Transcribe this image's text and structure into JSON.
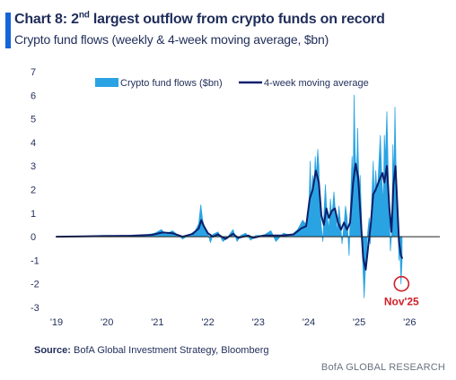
{
  "header": {
    "title_prefix": "Chart 8: 2",
    "title_sup": "nd",
    "title_rest": " largest outflow from crypto funds on record",
    "subtitle": "Crypto fund flows (weekly & 4-week moving average, $bn)"
  },
  "footer": {
    "source_label": "Source:",
    "source_text": " BofA Global Investment Strategy, Bloomberg",
    "brand": "BofA GLOBAL RESEARCH"
  },
  "chart_data": {
    "type": "area",
    "title": "Chart 8: 2nd largest outflow from crypto funds on record",
    "subtitle": "Crypto fund flows (weekly & 4-week moving average, $bn)",
    "ylim": [
      -3,
      7
    ],
    "yticks": [
      -3,
      -2,
      -1,
      0,
      1,
      2,
      3,
      4,
      5,
      6,
      7
    ],
    "xlim": [
      2019,
      2026.6
    ],
    "xticks": [
      {
        "x": 2019,
        "label": "'19"
      },
      {
        "x": 2020,
        "label": "'20"
      },
      {
        "x": 2021,
        "label": "'21"
      },
      {
        "x": 2022,
        "label": "'22"
      },
      {
        "x": 2023,
        "label": "'23"
      },
      {
        "x": 2024,
        "label": "'24"
      },
      {
        "x": 2025,
        "label": "'25"
      },
      {
        "x": 2026,
        "label": "'26"
      }
    ],
    "legend_position": "top-center",
    "colors": {
      "weekly": "#2aa3e3",
      "ma": "#0b1f6b",
      "annotation": "#d0202a",
      "axis": "#222222",
      "text": "#1f2d5a"
    },
    "series": [
      {
        "name": "Crypto fund flows ($bn)",
        "kind": "area",
        "points": [
          [
            2019.0,
            0.0
          ],
          [
            2019.5,
            0.02
          ],
          [
            2019.9,
            0.05
          ],
          [
            2020.2,
            0.02
          ],
          [
            2020.5,
            0.06
          ],
          [
            2020.8,
            0.08
          ],
          [
            2020.95,
            0.15
          ],
          [
            2021.08,
            0.3
          ],
          [
            2021.16,
            0.1
          ],
          [
            2021.3,
            0.25
          ],
          [
            2021.5,
            -0.1
          ],
          [
            2021.65,
            0.1
          ],
          [
            2021.75,
            0.25
          ],
          [
            2021.82,
            0.55
          ],
          [
            2021.86,
            1.35
          ],
          [
            2021.89,
            0.8
          ],
          [
            2021.93,
            0.35
          ],
          [
            2022.0,
            0.15
          ],
          [
            2022.05,
            -0.25
          ],
          [
            2022.1,
            0.1
          ],
          [
            2022.2,
            0.2
          ],
          [
            2022.3,
            -0.2
          ],
          [
            2022.4,
            0.0
          ],
          [
            2022.5,
            0.3
          ],
          [
            2022.58,
            -0.2
          ],
          [
            2022.65,
            0.05
          ],
          [
            2022.75,
            0.15
          ],
          [
            2022.85,
            -0.15
          ],
          [
            2022.95,
            0.05
          ],
          [
            2023.1,
            0.05
          ],
          [
            2023.25,
            0.25
          ],
          [
            2023.35,
            -0.2
          ],
          [
            2023.5,
            0.15
          ],
          [
            2023.65,
            0.05
          ],
          [
            2023.78,
            0.3
          ],
          [
            2023.88,
            0.7
          ],
          [
            2023.95,
            0.5
          ],
          [
            2024.0,
            1.0
          ],
          [
            2024.03,
            3.2
          ],
          [
            2024.05,
            1.4
          ],
          [
            2024.08,
            2.6
          ],
          [
            2024.1,
            1.6
          ],
          [
            2024.13,
            3.4
          ],
          [
            2024.15,
            2.5
          ],
          [
            2024.18,
            3.7
          ],
          [
            2024.2,
            3.0
          ],
          [
            2024.22,
            1.2
          ],
          [
            2024.25,
            0.4
          ],
          [
            2024.28,
            -0.2
          ],
          [
            2024.3,
            0.9
          ],
          [
            2024.33,
            2.2
          ],
          [
            2024.36,
            1.0
          ],
          [
            2024.4,
            0.3
          ],
          [
            2024.43,
            1.6
          ],
          [
            2024.46,
            0.8
          ],
          [
            2024.5,
            1.9
          ],
          [
            2024.53,
            1.0
          ],
          [
            2024.57,
            0.2
          ],
          [
            2024.6,
            1.3
          ],
          [
            2024.63,
            0.6
          ],
          [
            2024.66,
            -0.3
          ],
          [
            2024.7,
            0.5
          ],
          [
            2024.73,
            1.3
          ],
          [
            2024.76,
            0.8
          ],
          [
            2024.8,
            -0.8
          ],
          [
            2024.83,
            1.5
          ],
          [
            2024.86,
            3.4
          ],
          [
            2024.88,
            2.2
          ],
          [
            2024.9,
            6.0
          ],
          [
            2024.92,
            3.6
          ],
          [
            2024.95,
            2.4
          ],
          [
            2024.97,
            4.6
          ],
          [
            2025.0,
            1.8
          ],
          [
            2025.02,
            2.6
          ],
          [
            2025.05,
            0.6
          ],
          [
            2025.07,
            -1.0
          ],
          [
            2025.1,
            -2.6
          ],
          [
            2025.12,
            -1.6
          ],
          [
            2025.14,
            -0.8
          ],
          [
            2025.17,
            0.2
          ],
          [
            2025.2,
            0.8
          ],
          [
            2025.22,
            -0.3
          ],
          [
            2025.25,
            1.6
          ],
          [
            2025.28,
            3.2
          ],
          [
            2025.3,
            1.5
          ],
          [
            2025.33,
            2.8
          ],
          [
            2025.36,
            1.7
          ],
          [
            2025.4,
            3.5
          ],
          [
            2025.42,
            4.3
          ],
          [
            2025.45,
            2.4
          ],
          [
            2025.48,
            1.4
          ],
          [
            2025.5,
            4.3
          ],
          [
            2025.52,
            3.2
          ],
          [
            2025.55,
            5.3
          ],
          [
            2025.58,
            2.3
          ],
          [
            2025.6,
            1.0
          ],
          [
            2025.62,
            -0.6
          ],
          [
            2025.65,
            0.3
          ],
          [
            2025.67,
            3.9
          ],
          [
            2025.69,
            2.4
          ],
          [
            2025.71,
            5.5
          ],
          [
            2025.73,
            3.1
          ],
          [
            2025.75,
            1.6
          ],
          [
            2025.77,
            0.3
          ],
          [
            2025.79,
            -1.0
          ],
          [
            2025.81,
            -0.4
          ],
          [
            2025.83,
            -2.0
          ],
          [
            2025.85,
            -1.0
          ]
        ]
      },
      {
        "name": "4-week moving average",
        "kind": "line",
        "points": [
          [
            2019.0,
            0.0
          ],
          [
            2019.5,
            0.01
          ],
          [
            2020.0,
            0.03
          ],
          [
            2020.5,
            0.04
          ],
          [
            2020.9,
            0.08
          ],
          [
            2021.1,
            0.18
          ],
          [
            2021.3,
            0.15
          ],
          [
            2021.5,
            0.0
          ],
          [
            2021.7,
            0.12
          ],
          [
            2021.82,
            0.35
          ],
          [
            2021.87,
            0.7
          ],
          [
            2021.92,
            0.45
          ],
          [
            2022.0,
            0.15
          ],
          [
            2022.1,
            0.0
          ],
          [
            2022.2,
            0.1
          ],
          [
            2022.35,
            -0.1
          ],
          [
            2022.5,
            0.12
          ],
          [
            2022.6,
            -0.05
          ],
          [
            2022.8,
            0.05
          ],
          [
            2022.9,
            -0.05
          ],
          [
            2023.1,
            0.05
          ],
          [
            2023.3,
            0.05
          ],
          [
            2023.5,
            0.05
          ],
          [
            2023.7,
            0.1
          ],
          [
            2023.85,
            0.35
          ],
          [
            2023.95,
            0.45
          ],
          [
            2024.02,
            1.6
          ],
          [
            2024.08,
            2.0
          ],
          [
            2024.14,
            2.8
          ],
          [
            2024.2,
            2.3
          ],
          [
            2024.25,
            0.9
          ],
          [
            2024.3,
            0.5
          ],
          [
            2024.35,
            1.2
          ],
          [
            2024.4,
            0.8
          ],
          [
            2024.46,
            1.1
          ],
          [
            2024.52,
            1.2
          ],
          [
            2024.58,
            0.6
          ],
          [
            2024.64,
            0.3
          ],
          [
            2024.7,
            0.6
          ],
          [
            2024.76,
            0.3
          ],
          [
            2024.82,
            0.6
          ],
          [
            2024.88,
            2.3
          ],
          [
            2024.93,
            3.1
          ],
          [
            2024.98,
            2.5
          ],
          [
            2025.03,
            0.8
          ],
          [
            2025.08,
            -0.9
          ],
          [
            2025.13,
            -1.4
          ],
          [
            2025.18,
            -0.4
          ],
          [
            2025.23,
            0.5
          ],
          [
            2025.28,
            1.8
          ],
          [
            2025.33,
            2.0
          ],
          [
            2025.4,
            2.4
          ],
          [
            2025.46,
            2.7
          ],
          [
            2025.5,
            2.3
          ],
          [
            2025.55,
            3.0
          ],
          [
            2025.6,
            1.2
          ],
          [
            2025.64,
            0.2
          ],
          [
            2025.68,
            2.2
          ],
          [
            2025.72,
            3.0
          ],
          [
            2025.75,
            1.7
          ],
          [
            2025.79,
            -0.2
          ],
          [
            2025.83,
            -0.8
          ],
          [
            2025.85,
            -0.9
          ]
        ]
      }
    ],
    "annotation": {
      "label": "Nov'25",
      "x": 2025.84,
      "y": -2.0
    }
  }
}
